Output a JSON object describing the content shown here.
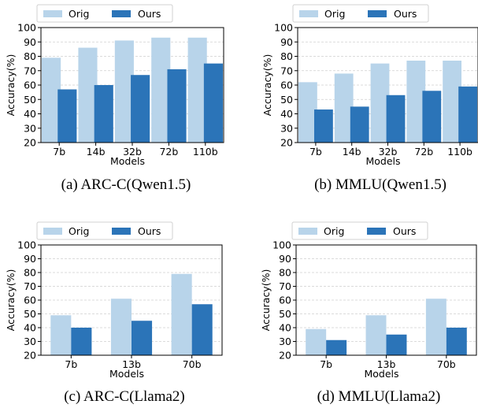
{
  "colors": {
    "orig": "#b8d4ea",
    "ours": "#2b74b8",
    "grid": "#cfcfcf",
    "axis": "#000000"
  },
  "chart_data": [
    {
      "type": "bar",
      "caption": "(a)  ARC-C(Qwen1.5)",
      "categories": [
        "7b",
        "14b",
        "32b",
        "72b",
        "110b"
      ],
      "series": [
        {
          "name": "Orig",
          "values": [
            79,
            86,
            91,
            93,
            93
          ]
        },
        {
          "name": "Ours",
          "values": [
            57,
            60,
            67,
            71,
            75
          ]
        }
      ],
      "xlabel": "Models",
      "ylabel": "Accuracy(%)",
      "ylim": [
        20,
        100
      ],
      "yticks": [
        20,
        30,
        40,
        50,
        60,
        70,
        80,
        90,
        100
      ],
      "grid": "horizontal dashed",
      "legend": "top"
    },
    {
      "type": "bar",
      "caption": "(b)  MMLU(Qwen1.5)",
      "categories": [
        "7b",
        "14b",
        "32b",
        "72b",
        "110b"
      ],
      "series": [
        {
          "name": "Orig",
          "values": [
            62,
            68,
            75,
            77,
            77
          ]
        },
        {
          "name": "Ours",
          "values": [
            43,
            45,
            53,
            56,
            59
          ]
        }
      ],
      "xlabel": "Models",
      "ylabel": "Accuracy(%)",
      "ylim": [
        20,
        100
      ],
      "yticks": [
        20,
        30,
        40,
        50,
        60,
        70,
        80,
        90,
        100
      ],
      "grid": "horizontal dashed",
      "legend": "top"
    },
    {
      "type": "bar",
      "caption": "(c)  ARC-C(Llama2)",
      "categories": [
        "7b",
        "13b",
        "70b"
      ],
      "series": [
        {
          "name": "Orig",
          "values": [
            49,
            61,
            79
          ]
        },
        {
          "name": "Ours",
          "values": [
            40,
            45,
            57
          ]
        }
      ],
      "xlabel": "Models",
      "ylabel": "Accuracy(%)",
      "ylim": [
        20,
        100
      ],
      "yticks": [
        20,
        30,
        40,
        50,
        60,
        70,
        80,
        90,
        100
      ],
      "grid": "horizontal dashed",
      "legend": "top"
    },
    {
      "type": "bar",
      "caption": "(d)  MMLU(Llama2)",
      "categories": [
        "7b",
        "13b",
        "70b"
      ],
      "series": [
        {
          "name": "Orig",
          "values": [
            39,
            49,
            61
          ]
        },
        {
          "name": "Ours",
          "values": [
            31,
            35,
            40
          ]
        }
      ],
      "xlabel": "Models",
      "ylabel": "Accuracy(%)",
      "ylim": [
        20,
        100
      ],
      "yticks": [
        20,
        30,
        40,
        50,
        60,
        70,
        80,
        90,
        100
      ],
      "grid": "horizontal dashed",
      "legend": "top"
    }
  ]
}
